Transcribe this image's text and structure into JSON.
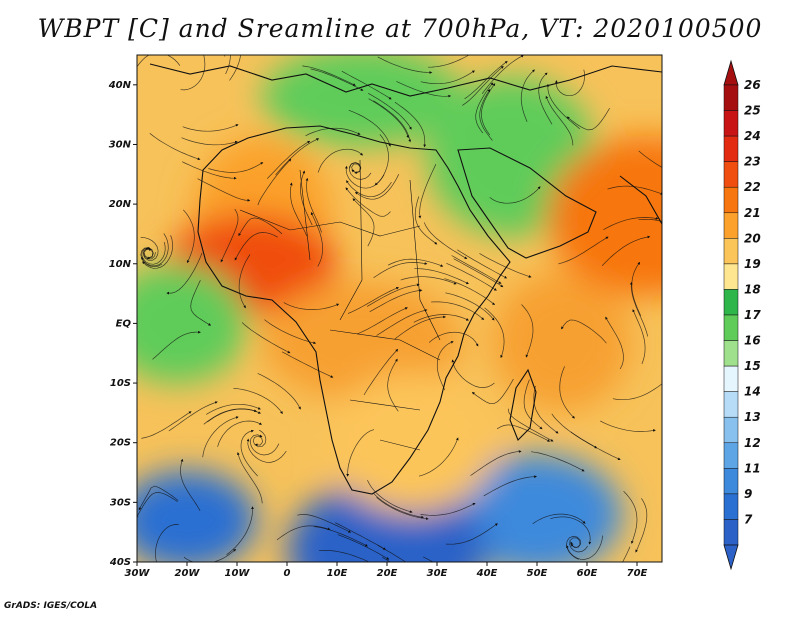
{
  "title": "WBPT [C] and Sreamline at 700hPa, VT: 2020100500",
  "credit": "GrADS: IGES/COLA",
  "map": {
    "lon_range": [
      -30,
      75
    ],
    "lat_range": [
      -40,
      45
    ],
    "lon_ticks": [
      {
        "value": -30,
        "label": "30W"
      },
      {
        "value": -20,
        "label": "20W"
      },
      {
        "value": -10,
        "label": "10W"
      },
      {
        "value": 0,
        "label": "0"
      },
      {
        "value": 10,
        "label": "10E"
      },
      {
        "value": 20,
        "label": "20E"
      },
      {
        "value": 30,
        "label": "30E"
      },
      {
        "value": 40,
        "label": "40E"
      },
      {
        "value": 50,
        "label": "50E"
      },
      {
        "value": 60,
        "label": "60E"
      },
      {
        "value": 70,
        "label": "70E"
      }
    ],
    "lat_ticks": [
      {
        "value": 40,
        "label": "40N"
      },
      {
        "value": 30,
        "label": "30N"
      },
      {
        "value": 20,
        "label": "20N"
      },
      {
        "value": 10,
        "label": "10N"
      },
      {
        "value": 0,
        "label": "EQ"
      },
      {
        "value": -10,
        "label": "10S"
      },
      {
        "value": -20,
        "label": "20S"
      },
      {
        "value": -30,
        "label": "30S"
      },
      {
        "value": -40,
        "label": "40S"
      }
    ]
  },
  "colorbar": {
    "levels": [
      {
        "label": "26",
        "color": "#a50f0f"
      },
      {
        "label": "25",
        "color": "#c81414"
      },
      {
        "label": "24",
        "color": "#e32b12"
      },
      {
        "label": "23",
        "color": "#f04e10"
      },
      {
        "label": "22",
        "color": "#f7760f"
      },
      {
        "label": "21",
        "color": "#fba12c"
      },
      {
        "label": "20",
        "color": "#fcc55a"
      },
      {
        "label": "19",
        "color": "#fde68f"
      },
      {
        "label": "18",
        "color": "#2fb64a"
      },
      {
        "label": "17",
        "color": "#5fcc5a"
      },
      {
        "label": "16",
        "color": "#9fe08c"
      },
      {
        "label": "15",
        "color": "#e6f6ff"
      },
      {
        "label": "14",
        "color": "#b7dcf7"
      },
      {
        "label": "13",
        "color": "#88c1ee"
      },
      {
        "label": "12",
        "color": "#5ea5e6"
      },
      {
        "label": "11",
        "color": "#3d89dc"
      },
      {
        "label": "9",
        "color": "#2a6fd2"
      },
      {
        "label": "7",
        "color": "#2c62c8"
      }
    ],
    "bottom_color": "#2c62c8",
    "top_color": "#a50f0f"
  },
  "fields": [
    {
      "name": "south-atlantic-cool",
      "lon": -20,
      "lat": -33,
      "color": "#2a6fd2"
    },
    {
      "name": "southern-ocean-cool",
      "lon": 50,
      "lat": -32,
      "color": "#3d89dc"
    },
    {
      "name": "south-cold-band",
      "lon": 20,
      "lat": -38,
      "color": "#2c62c8"
    },
    {
      "name": "north-africa-warm",
      "lon": -5,
      "lat": 18,
      "color": "#fba12c"
    },
    {
      "name": "sahel-hot",
      "lon": -7,
      "lat": 10,
      "color": "#f04e10"
    },
    {
      "name": "central-africa-warm",
      "lon": 15,
      "lat": -3,
      "color": "#f7a030"
    },
    {
      "name": "indian-ocean-warm",
      "lon": 55,
      "lat": -3,
      "color": "#f7a030"
    },
    {
      "name": "arabia-green",
      "lon": 45,
      "lat": 28,
      "color": "#5fcc5a"
    },
    {
      "name": "med-green",
      "lon": 15,
      "lat": 38,
      "color": "#5fcc5a"
    },
    {
      "name": "atlantic-green",
      "lon": -22,
      "lat": 0,
      "color": "#5fcc5a"
    },
    {
      "name": "south-africa-warm",
      "lon": 25,
      "lat": -20,
      "color": "#fcc55a"
    },
    {
      "name": "india-warm",
      "lon": 72,
      "lat": 18,
      "color": "#f7760f"
    }
  ]
}
